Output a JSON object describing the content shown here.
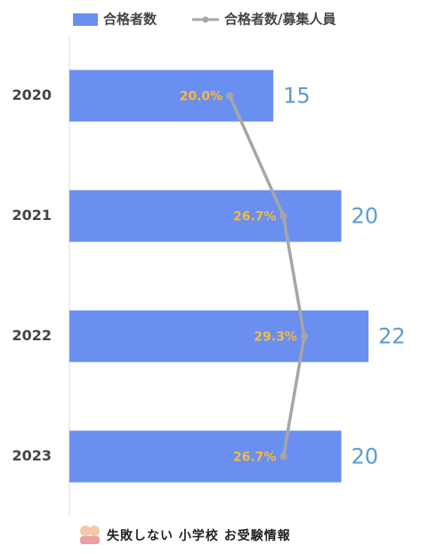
{
  "chart_data": {
    "type": "bar",
    "orientation": "horizontal",
    "categories": [
      "2020",
      "2021",
      "2022",
      "2023"
    ],
    "series": [
      {
        "name": "合格者数",
        "color": "#6b8ff0",
        "values": [
          15,
          20,
          22,
          20
        ]
      },
      {
        "name": "合格者数/募集人員",
        "color": "#a6a6a6",
        "type": "line",
        "axis": "x2",
        "values": [
          20.0,
          26.7,
          29.3,
          26.7
        ],
        "value_labels": [
          "20.0%",
          "26.7%",
          "29.3%",
          "26.7%"
        ]
      }
    ],
    "xlim": [
      0,
      25
    ],
    "x2lim": [
      0,
      42.4
    ]
  },
  "footer": "失敗しない 小学校 お受験情報"
}
